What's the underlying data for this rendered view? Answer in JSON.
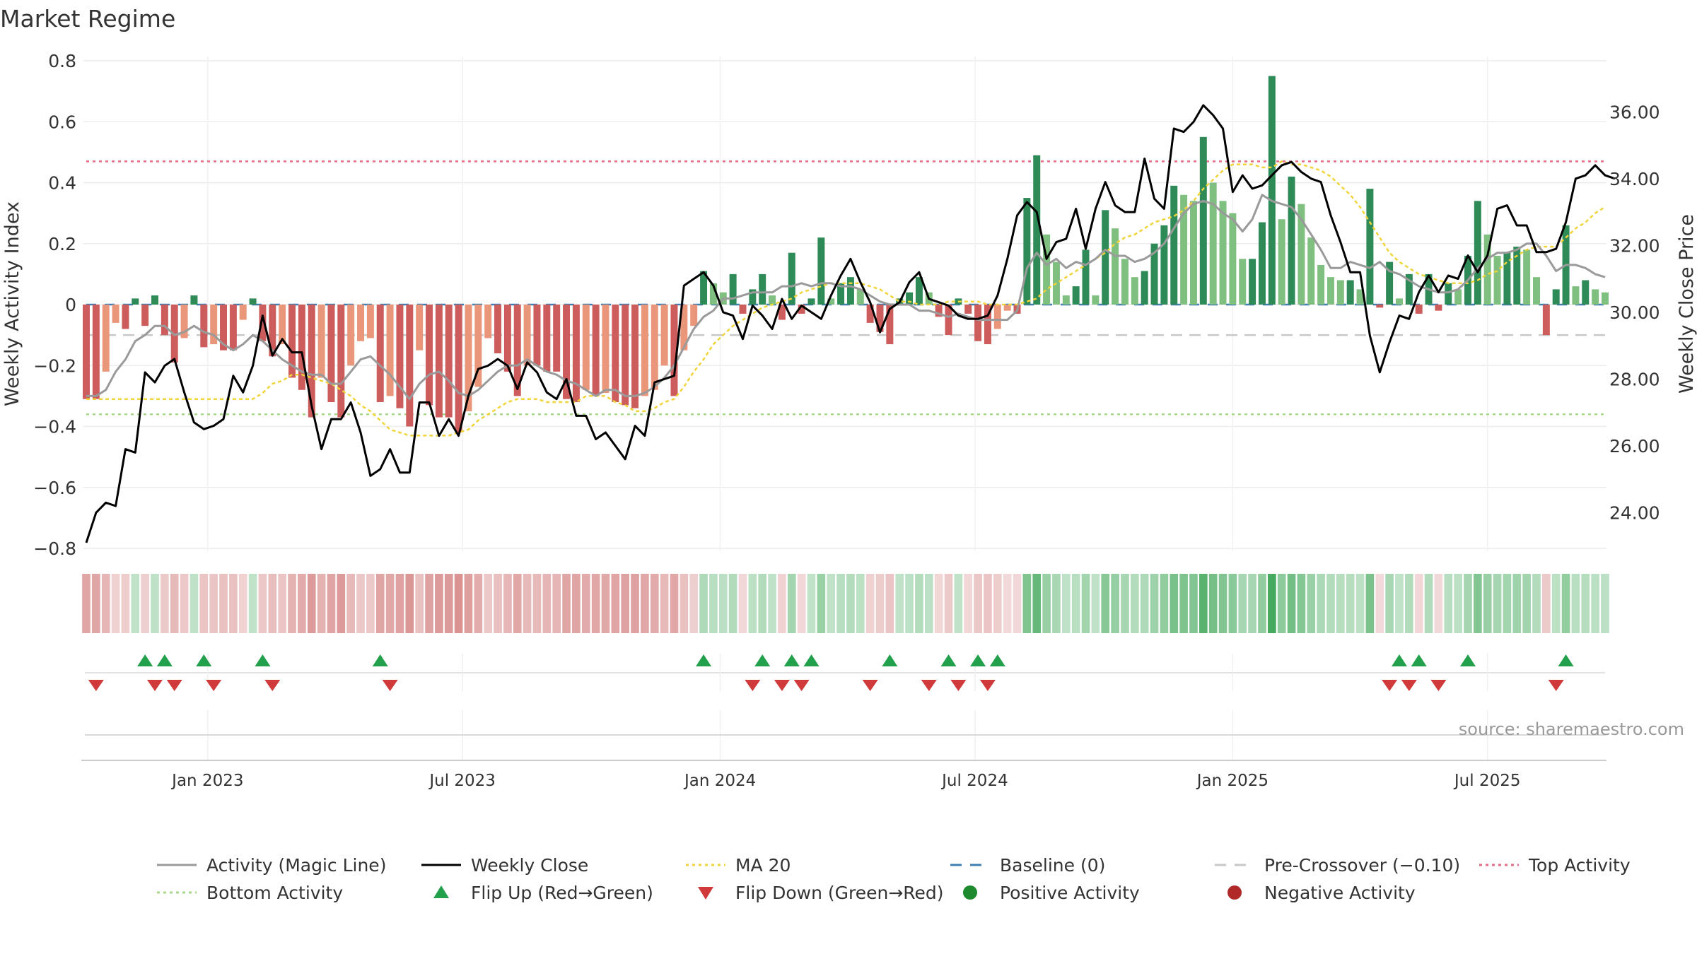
{
  "chart_data": {
    "type": "bar",
    "title": "Market Regime",
    "ylabel_left": "Weekly Activity Index",
    "ylabel_right": "Weekly Close Price",
    "left_yticks": [
      "0.8",
      "0.6",
      "0.4",
      "0.2",
      "0",
      "−0.2",
      "−0.4",
      "−0.6",
      "−0.8"
    ],
    "left_ylim": [
      -0.8,
      0.8
    ],
    "right_yticks": [
      "36.00",
      "34.00",
      "32.00",
      "30.00",
      "28.00",
      "26.00",
      "24.00"
    ],
    "right_ylim": [
      22.93,
      37.53
    ],
    "x_ticks": [
      "Jan 2023",
      "Jul 2023",
      "Jan 2024",
      "Jul 2024",
      "Jan 2025",
      "Jul 2025"
    ],
    "x_tick_weeks": [
      12.4,
      38.4,
      64.7,
      90.7,
      117.0,
      143.0
    ],
    "grid": true,
    "legend_position": "bottom",
    "reference_lines": {
      "top_activity": 0.47,
      "bottom_activity": -0.36,
      "pre_crossover": -0.1,
      "baseline": 0
    },
    "activity_bars": [
      -0.31,
      -0.31,
      -0.22,
      -0.06,
      -0.08,
      0.02,
      -0.07,
      0.03,
      -0.1,
      -0.19,
      -0.11,
      0.03,
      -0.14,
      -0.13,
      -0.15,
      -0.15,
      -0.05,
      0.02,
      -0.12,
      -0.17,
      -0.13,
      -0.24,
      -0.28,
      -0.37,
      -0.24,
      -0.32,
      -0.37,
      -0.2,
      -0.12,
      -0.11,
      -0.32,
      -0.3,
      -0.34,
      -0.4,
      -0.15,
      -0.33,
      -0.37,
      -0.37,
      -0.42,
      -0.35,
      -0.27,
      -0.11,
      -0.16,
      -0.22,
      -0.3,
      -0.2,
      -0.2,
      -0.22,
      -0.22,
      -0.31,
      -0.32,
      -0.28,
      -0.3,
      -0.29,
      -0.32,
      -0.33,
      -0.34,
      -0.3,
      -0.28,
      -0.2,
      -0.3,
      -0.15,
      -0.07,
      0.11,
      0.07,
      0.04,
      0.1,
      -0.03,
      0.05,
      0.1,
      0.03,
      -0.05,
      0.17,
      -0.03,
      0.02,
      0.22,
      0.02,
      0.07,
      0.09,
      0.05,
      -0.06,
      -0.09,
      -0.13,
      0.02,
      0.04,
      0.09,
      0.04,
      -0.04,
      -0.1,
      0.02,
      -0.03,
      -0.12,
      -0.13,
      -0.08,
      -0.02,
      -0.03,
      0.35,
      0.49,
      0.23,
      0.14,
      0.03,
      0.06,
      0.18,
      0.03,
      0.31,
      0.25,
      0.15,
      0.09,
      0.11,
      0.2,
      0.26,
      0.39,
      0.36,
      0.34,
      0.55,
      0.4,
      0.34,
      0.3,
      0.15,
      0.15,
      0.27,
      0.75,
      0.28,
      0.42,
      0.33,
      0.22,
      0.13,
      0.09,
      0.08,
      0.08,
      0.05,
      0.38,
      -0.01,
      0.14,
      0.02,
      0.1,
      -0.03,
      0.1,
      -0.02,
      0.07,
      0.05,
      0.16,
      0.34,
      0.23,
      0.16,
      0.17,
      0.19,
      0.18,
      0.09,
      -0.1,
      0.05,
      0.26,
      0.06,
      0.08,
      0.05,
      0.04
    ],
    "series": [
      {
        "name": "Activity (Magic Line)",
        "axis": "left",
        "values": [
          -0.3,
          -0.3,
          -0.28,
          -0.22,
          -0.18,
          -0.12,
          -0.1,
          -0.07,
          -0.07,
          -0.1,
          -0.09,
          -0.07,
          -0.09,
          -0.1,
          -0.13,
          -0.15,
          -0.13,
          -0.1,
          -0.12,
          -0.15,
          -0.18,
          -0.2,
          -0.22,
          -0.23,
          -0.23,
          -0.26,
          -0.26,
          -0.22,
          -0.18,
          -0.17,
          -0.2,
          -0.23,
          -0.27,
          -0.31,
          -0.26,
          -0.23,
          -0.22,
          -0.25,
          -0.29,
          -0.3,
          -0.28,
          -0.25,
          -0.22,
          -0.2,
          -0.2,
          -0.18,
          -0.2,
          -0.22,
          -0.23,
          -0.25,
          -0.26,
          -0.28,
          -0.3,
          -0.28,
          -0.28,
          -0.3,
          -0.3,
          -0.29,
          -0.27,
          -0.24,
          -0.2,
          -0.14,
          -0.08,
          -0.04,
          -0.02,
          0.02,
          0.02,
          0.03,
          0.04,
          0.04,
          0.04,
          0.06,
          0.06,
          0.07,
          0.06,
          0.07,
          0.07,
          0.06,
          0.06,
          0.05,
          0.03,
          0.01,
          0.0,
          0.0,
          0.0,
          -0.02,
          -0.02,
          -0.03,
          -0.04,
          -0.03,
          -0.04,
          -0.05,
          -0.05,
          -0.05,
          -0.05,
          -0.02,
          0.12,
          0.17,
          0.13,
          0.15,
          0.12,
          0.14,
          0.13,
          0.15,
          0.18,
          0.16,
          0.16,
          0.14,
          0.15,
          0.17,
          0.2,
          0.25,
          0.3,
          0.33,
          0.34,
          0.33,
          0.3,
          0.28,
          0.24,
          0.28,
          0.36,
          0.34,
          0.33,
          0.32,
          0.28,
          0.23,
          0.18,
          0.12,
          0.12,
          0.14,
          0.13,
          0.12,
          0.14,
          0.11,
          0.1,
          0.08,
          0.06,
          0.05,
          0.04,
          0.04,
          0.05,
          0.08,
          0.12,
          0.15,
          0.17,
          0.17,
          0.18,
          0.2,
          0.2,
          0.16,
          0.11,
          0.13,
          0.13,
          0.12,
          0.1,
          0.09
        ]
      },
      {
        "name": "Weekly Close",
        "axis": "right",
        "values": [
          23.1,
          24.0,
          24.3,
          24.2,
          25.9,
          25.8,
          28.2,
          27.9,
          28.4,
          28.6,
          27.6,
          26.7,
          26.5,
          26.6,
          26.8,
          28.1,
          27.6,
          28.4,
          29.9,
          28.7,
          29.2,
          28.8,
          28.8,
          27.2,
          25.9,
          26.8,
          26.8,
          27.3,
          26.4,
          25.1,
          25.3,
          25.9,
          25.2,
          25.2,
          27.3,
          27.3,
          26.3,
          26.8,
          26.3,
          27.5,
          28.3,
          28.4,
          28.6,
          28.4,
          27.7,
          28.5,
          28.2,
          27.6,
          27.4,
          28.0,
          26.9,
          26.9,
          26.2,
          26.4,
          26.0,
          25.6,
          26.6,
          26.3,
          27.9,
          28.0,
          28.1,
          30.8,
          31.0,
          31.2,
          30.8,
          30.0,
          29.9,
          29.2,
          30.2,
          29.9,
          29.5,
          30.4,
          29.8,
          30.2,
          30.0,
          29.8,
          30.5,
          31.1,
          31.6,
          30.9,
          30.3,
          29.4,
          30.1,
          30.3,
          30.9,
          31.2,
          30.4,
          30.3,
          30.2,
          29.9,
          29.8,
          29.8,
          29.9,
          30.5,
          31.6,
          32.9,
          33.3,
          33.0,
          31.6,
          32.1,
          32.2,
          33.1,
          31.9,
          33.1,
          33.9,
          33.2,
          33.0,
          33.0,
          34.6,
          33.4,
          33.1,
          35.5,
          35.4,
          35.7,
          36.2,
          35.9,
          35.5,
          33.6,
          34.1,
          33.7,
          33.8,
          34.1,
          34.4,
          34.5,
          34.2,
          34.0,
          33.9,
          32.9,
          32.1,
          31.2,
          31.2,
          29.3,
          28.2,
          29.1,
          29.9,
          29.8,
          30.6,
          31.1,
          30.6,
          31.1,
          31.0,
          31.7,
          31.2,
          31.7,
          33.1,
          33.2,
          32.6,
          32.6,
          31.8,
          31.8,
          31.9,
          32.7,
          34.0,
          34.1,
          34.4,
          34.1,
          34.0
        ]
      },
      {
        "name": "MA 20",
        "axis": "left",
        "values": [
          -0.31,
          -0.31,
          -0.31,
          -0.31,
          -0.31,
          -0.31,
          -0.31,
          -0.31,
          -0.31,
          -0.31,
          -0.31,
          -0.31,
          -0.31,
          -0.31,
          -0.31,
          -0.31,
          -0.31,
          -0.31,
          -0.29,
          -0.26,
          -0.25,
          -0.23,
          -0.23,
          -0.24,
          -0.25,
          -0.26,
          -0.28,
          -0.3,
          -0.33,
          -0.35,
          -0.38,
          -0.41,
          -0.42,
          -0.43,
          -0.43,
          -0.43,
          -0.43,
          -0.43,
          -0.42,
          -0.41,
          -0.38,
          -0.36,
          -0.34,
          -0.32,
          -0.31,
          -0.31,
          -0.31,
          -0.32,
          -0.32,
          -0.32,
          -0.32,
          -0.3,
          -0.3,
          -0.3,
          -0.32,
          -0.33,
          -0.35,
          -0.35,
          -0.34,
          -0.32,
          -0.31,
          -0.27,
          -0.22,
          -0.18,
          -0.13,
          -0.1,
          -0.07,
          -0.05,
          -0.03,
          -0.01,
          0.0,
          0.01,
          0.02,
          0.04,
          0.05,
          0.06,
          0.07,
          0.07,
          0.07,
          0.07,
          0.06,
          0.05,
          0.03,
          0.01,
          0.01,
          0.0,
          0.0,
          0.0,
          0.01,
          0.01,
          0.01,
          0.01,
          0.0,
          0.0,
          0.0,
          0.0,
          0.01,
          0.02,
          0.05,
          0.07,
          0.09,
          0.11,
          0.13,
          0.15,
          0.17,
          0.2,
          0.22,
          0.23,
          0.25,
          0.27,
          0.28,
          0.29,
          0.31,
          0.34,
          0.38,
          0.41,
          0.44,
          0.46,
          0.46,
          0.46,
          0.45,
          0.45,
          0.47,
          0.46,
          0.46,
          0.45,
          0.44,
          0.42,
          0.39,
          0.36,
          0.32,
          0.27,
          0.22,
          0.17,
          0.14,
          0.12,
          0.1,
          0.09,
          0.08,
          0.07,
          0.07,
          0.07,
          0.08,
          0.1,
          0.11,
          0.14,
          0.16,
          0.18,
          0.19,
          0.19,
          0.19,
          0.22,
          0.25,
          0.27,
          0.3,
          0.32
        ]
      }
    ],
    "flip_up_weeks": [
      6,
      8,
      12,
      18,
      30,
      63,
      69,
      72,
      74,
      82,
      88,
      91,
      93,
      134,
      136,
      141,
      151
    ],
    "flip_down_weeks": [
      1,
      7,
      9,
      13,
      19,
      31,
      68,
      71,
      73,
      80,
      86,
      89,
      92,
      133,
      135,
      138,
      150
    ],
    "annotation": "source: sharemaestro.com",
    "legend": [
      {
        "label": "Activity (Magic Line)",
        "symbol": "line",
        "color": "#9a9a9a"
      },
      {
        "label": "Weekly Close",
        "symbol": "line",
        "color": "#000000"
      },
      {
        "label": "MA 20",
        "symbol": "dotted",
        "color": "#f0d43a"
      },
      {
        "label": "Baseline (0)",
        "symbol": "dashed",
        "color": "#3f7fb1"
      },
      {
        "label": "Pre-Crossover (−0.10)",
        "symbol": "dashed",
        "color": "#c8c8c8"
      },
      {
        "label": "Top Activity",
        "symbol": "dotted",
        "color": "#e06c88"
      },
      {
        "label": "Bottom Activity",
        "symbol": "dotted",
        "color": "#a8d98a"
      },
      {
        "label": "Flip Up (Red→Green)",
        "symbol": "triangle-up",
        "color": "#22a04b"
      },
      {
        "label": "Flip Down (Green→Red)",
        "symbol": "triangle-down",
        "color": "#d03a3a"
      },
      {
        "label": "Positive Activity",
        "symbol": "dot",
        "color": "#1e8a2e"
      },
      {
        "label": "Negative Activity",
        "symbol": "dot",
        "color": "#b02828"
      }
    ],
    "colors": {
      "pos_strong": "#2e8b57",
      "pos_weak": "#7fbf7f",
      "neg_strong": "#cd5c5c",
      "neg_weak": "#e9967a",
      "magic": "#9a9a9a",
      "close": "#000000",
      "ma": "#f0d43a",
      "baseline": "#3f7fb1",
      "pre": "#c8c8c8",
      "top": "#e06c88",
      "bottom": "#a8d98a",
      "flip_up": "#22a04b",
      "flip_down": "#d03a3a"
    }
  }
}
